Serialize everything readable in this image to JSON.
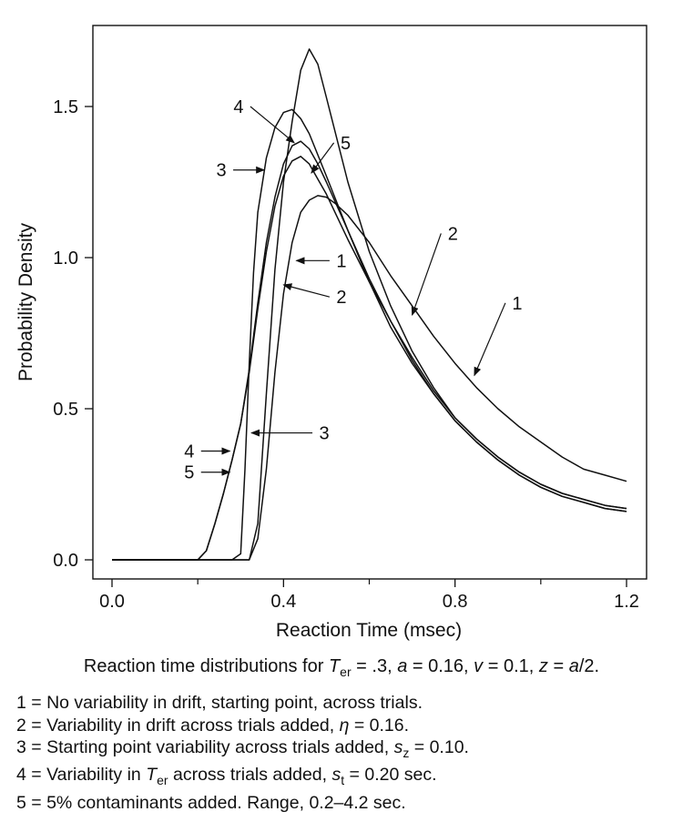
{
  "chart_data": {
    "type": "line",
    "title": "",
    "xlabel": "Reaction Time (msec)",
    "ylabel": "Probability Density",
    "xlim": [
      0.0,
      1.2
    ],
    "ylim": [
      0.0,
      1.75
    ],
    "xticks": [
      "0.0",
      "0.4",
      "0.8",
      "1.2"
    ],
    "yticks": [
      "0.0",
      "0.5",
      "1.0",
      "1.5"
    ],
    "grid": false,
    "series": [
      {
        "name": "1",
        "x": [
          0.0,
          0.3,
          0.32,
          0.34,
          0.36,
          0.38,
          0.4,
          0.42,
          0.44,
          0.46,
          0.48,
          0.5,
          0.52,
          0.55,
          0.6,
          0.65,
          0.7,
          0.75,
          0.8,
          0.85,
          0.9,
          0.95,
          1.0,
          1.05,
          1.1,
          1.15,
          1.2
        ],
        "y": [
          0.0,
          0.0,
          0.0,
          0.07,
          0.3,
          0.62,
          0.88,
          1.05,
          1.15,
          1.19,
          1.205,
          1.2,
          1.18,
          1.14,
          1.05,
          0.94,
          0.84,
          0.74,
          0.65,
          0.57,
          0.5,
          0.44,
          0.39,
          0.34,
          0.3,
          0.28,
          0.26
        ]
      },
      {
        "name": "2",
        "x": [
          0.0,
          0.3,
          0.32,
          0.34,
          0.36,
          0.38,
          0.4,
          0.42,
          0.44,
          0.46,
          0.48,
          0.5,
          0.55,
          0.6,
          0.65,
          0.7,
          0.75,
          0.8,
          0.85,
          0.9,
          0.95,
          1.0,
          1.05,
          1.1,
          1.15,
          1.2
        ],
        "y": [
          0.0,
          0.0,
          0.0,
          0.12,
          0.55,
          0.96,
          1.25,
          1.45,
          1.62,
          1.69,
          1.64,
          1.53,
          1.25,
          1.02,
          0.84,
          0.69,
          0.57,
          0.47,
          0.4,
          0.34,
          0.29,
          0.25,
          0.22,
          0.2,
          0.18,
          0.17
        ]
      },
      {
        "name": "3",
        "x": [
          0.0,
          0.28,
          0.3,
          0.31,
          0.32,
          0.33,
          0.34,
          0.36,
          0.38,
          0.4,
          0.42,
          0.44,
          0.46,
          0.5,
          0.55,
          0.6,
          0.65,
          0.7,
          0.75,
          0.8,
          0.85,
          0.9,
          0.95,
          1.0,
          1.05,
          1.1,
          1.15,
          1.2
        ],
        "y": [
          0.0,
          0.0,
          0.02,
          0.3,
          0.65,
          0.95,
          1.15,
          1.33,
          1.43,
          1.48,
          1.49,
          1.46,
          1.41,
          1.27,
          1.09,
          0.92,
          0.77,
          0.65,
          0.55,
          0.46,
          0.39,
          0.33,
          0.28,
          0.24,
          0.21,
          0.19,
          0.17,
          0.16
        ]
      },
      {
        "name": "4",
        "x": [
          0.0,
          0.2,
          0.22,
          0.24,
          0.26,
          0.28,
          0.3,
          0.32,
          0.34,
          0.36,
          0.38,
          0.4,
          0.42,
          0.44,
          0.46,
          0.48,
          0.5,
          0.55,
          0.6,
          0.65,
          0.7,
          0.75,
          0.8,
          0.85,
          0.9,
          0.95,
          1.0,
          1.05,
          1.1,
          1.15,
          1.2
        ],
        "y": [
          0.0,
          0.0,
          0.03,
          0.12,
          0.22,
          0.33,
          0.45,
          0.63,
          0.85,
          1.05,
          1.2,
          1.31,
          1.37,
          1.385,
          1.36,
          1.31,
          1.25,
          1.09,
          0.93,
          0.79,
          0.66,
          0.55,
          0.46,
          0.39,
          0.33,
          0.28,
          0.24,
          0.21,
          0.19,
          0.17,
          0.16
        ]
      },
      {
        "name": "5",
        "x": [
          0.0,
          0.2,
          0.22,
          0.24,
          0.26,
          0.28,
          0.3,
          0.32,
          0.34,
          0.36,
          0.38,
          0.4,
          0.42,
          0.44,
          0.46,
          0.48,
          0.5,
          0.55,
          0.6,
          0.65,
          0.7,
          0.75,
          0.8,
          0.85,
          0.9,
          0.95,
          1.0,
          1.05,
          1.1,
          1.15,
          1.2
        ],
        "y": [
          0.0,
          0.0,
          0.03,
          0.12,
          0.22,
          0.33,
          0.45,
          0.62,
          0.83,
          1.02,
          1.17,
          1.27,
          1.32,
          1.335,
          1.31,
          1.26,
          1.21,
          1.06,
          0.92,
          0.79,
          0.67,
          0.56,
          0.47,
          0.4,
          0.34,
          0.29,
          0.25,
          0.22,
          0.2,
          0.18,
          0.17
        ]
      }
    ],
    "annotations": [
      {
        "text": "1",
        "point": [
          0.43,
          0.99
        ],
        "label_at": [
          0.535,
          0.99
        ]
      },
      {
        "text": "2",
        "point": [
          0.4,
          0.91
        ],
        "label_at": [
          0.535,
          0.87
        ]
      },
      {
        "text": "3",
        "point": [
          0.325,
          0.42
        ],
        "label_at": [
          0.495,
          0.42
        ]
      },
      {
        "text": "4",
        "point": [
          0.275,
          0.36
        ],
        "label_at": [
          0.18,
          0.36
        ]
      },
      {
        "text": "5",
        "point": [
          0.275,
          0.29
        ],
        "label_at": [
          0.18,
          0.29
        ]
      },
      {
        "text": "3",
        "point": [
          0.355,
          1.29
        ],
        "label_at": [
          0.255,
          1.29
        ]
      },
      {
        "text": "4",
        "point": [
          0.425,
          1.38
        ],
        "label_at": [
          0.295,
          1.5
        ]
      },
      {
        "text": "5",
        "point": [
          0.465,
          1.28
        ],
        "label_at": [
          0.545,
          1.38
        ]
      },
      {
        "text": "2",
        "point": [
          0.7,
          0.81
        ],
        "label_at": [
          0.795,
          1.08
        ]
      },
      {
        "text": "1",
        "point": [
          0.845,
          0.61
        ],
        "label_at": [
          0.945,
          0.85
        ]
      }
    ]
  },
  "caption": {
    "title_prefix": "Reaction time distributions for ",
    "title_vars": [
      {
        "sym": "T",
        "sub": "er",
        "val": " = .3, "
      },
      {
        "sym": "a",
        "sub": "",
        "val": " = 0.16, "
      },
      {
        "sym": "v",
        "sub": "",
        "val": " = 0.1, "
      },
      {
        "sym": "z",
        "sub": "",
        "val": " = "
      },
      {
        "sym": "a",
        "sub": "",
        "val": "/2."
      }
    ],
    "legend": [
      {
        "num": "1",
        "text": " = No variability in drift, starting point, across trials."
      },
      {
        "num": "2",
        "text": " = Variability in drift across trials added, ",
        "sym": "η",
        "sub": "",
        "tail": " = 0.16."
      },
      {
        "num": "3",
        "text": " = Starting point variability across trials added, ",
        "sym": "s",
        "sub": "z",
        "tail": " = 0.10."
      },
      {
        "num": "4",
        "text": " = Variability in  ",
        "sym": "T",
        "sub": "er",
        "tail": " across trials added, ",
        "sym2": "s",
        "sub2": "t",
        "tail2": " = 0.20 sec."
      },
      {
        "num": "5",
        "text": " = 5% contaminants added. Range, 0.2–4.2 sec."
      }
    ]
  }
}
